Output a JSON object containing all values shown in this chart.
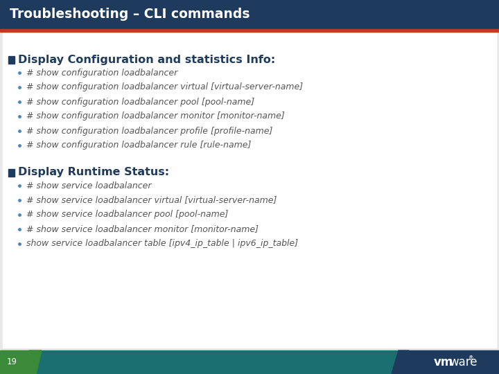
{
  "title": "Troubleshooting – CLI commands",
  "section1_header": "Display Configuration and statistics Info:",
  "section2_header": "Display Runtime Status:",
  "section_header_color": "#1e3a5c",
  "bullet_color": "#4a86b8",
  "text_color": "#555555",
  "section1_bullets": [
    "# show configuration loadbalancer",
    "# show configuration loadbalancer virtual [virtual-server-name]",
    "# show configuration loadbalancer pool [pool-name]",
    "# show configuration loadbalancer monitor [monitor-name]",
    "# show configuration loadbalancer profile [profile-name]",
    "# show configuration loadbalancer rule [rule-name]"
  ],
  "section2_bullets": [
    "# show service loadbalancer",
    "# show service loadbalancer virtual [virtual-server-name]",
    "# show service loadbalancer pool [pool-name]",
    "# show service loadbalancer monitor [monitor-name]",
    "show service loadbalancer table [ipv4_ip_table | ipv6_ip_table]"
  ],
  "footer_page_num": "19",
  "title_bar_color": "#1e3a5c",
  "title_underline_color": "#c0392b",
  "footer_teal": "#1a7070",
  "footer_green": "#3a8a3a",
  "footer_navy": "#1e3a5c",
  "white": "#ffffff",
  "bg_color": "#e8e8e8"
}
